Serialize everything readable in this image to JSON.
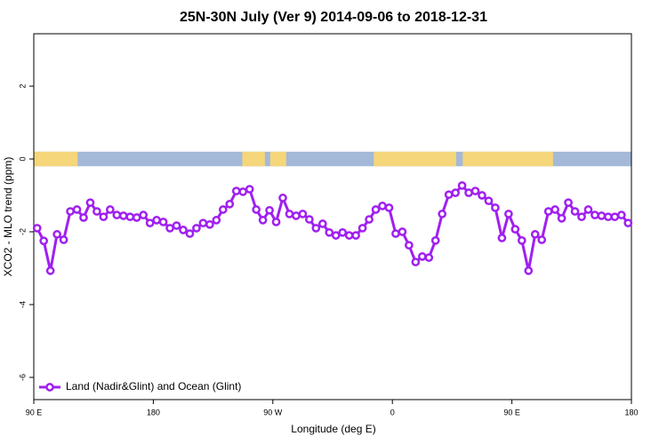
{
  "chart_data": {
    "type": "line",
    "title": "25N-30N July (Ver 9)   2014-09-06 to 2018-12-31",
    "x_label": "Longitude (deg E)",
    "y_label": "XCO2 - MLO trend (ppm)",
    "xlim": [
      90,
      540
    ],
    "ylim": [
      -6.61,
      3.44
    ],
    "xticks": [
      {
        "value": 90,
        "label": "90 E"
      },
      {
        "value": 180,
        "label": "180"
      },
      {
        "value": 270,
        "label": "90 W"
      },
      {
        "value": 360,
        "label": "0"
      },
      {
        "value": 450,
        "label": "90 E"
      },
      {
        "value": 540,
        "label": "180"
      }
    ],
    "yticks": [
      -6,
      -4,
      -2,
      0,
      2
    ],
    "legend": "bottom-left",
    "land_ocean_band": {
      "ylim": [
        -0.2,
        0.2
      ],
      "ocean_color": "#a4b9d8",
      "land_color": "#f5d67a",
      "land_spans": [
        [
          90,
          123
        ],
        [
          247,
          264
        ],
        [
          268,
          280
        ],
        [
          346,
          408
        ],
        [
          413,
          481
        ]
      ]
    },
    "x": [
      92.5,
      97.5,
      102.5,
      107.5,
      112.5,
      117.5,
      122.5,
      127.5,
      132.5,
      137.5,
      142.5,
      147.5,
      152.5,
      157.5,
      162.5,
      167.5,
      172.5,
      177.5,
      182.5,
      187.5,
      192.5,
      197.5,
      202.5,
      207.5,
      212.5,
      217.5,
      222.5,
      227.5,
      232.5,
      237.5,
      242.5,
      247.5,
      252.5,
      257.5,
      262.5,
      267.5,
      272.5,
      277.5,
      282.5,
      287.5,
      292.5,
      297.5,
      302.5,
      307.5,
      312.5,
      317.5,
      322.5,
      327.5,
      332.5,
      337.5,
      342.5,
      347.5,
      352.5,
      357.5,
      362.5,
      367.5,
      372.5,
      377.5,
      382.5,
      387.5,
      392.5,
      397.5,
      402.5,
      407.5,
      412.5,
      417.5,
      422.5,
      427.5,
      432.5,
      437.5,
      442.5,
      447.5,
      452.5,
      457.5,
      462.5,
      467.5,
      472.5,
      477.5,
      482.5,
      487.5,
      492.5,
      497.5,
      502.5,
      507.5,
      512.5,
      517.5,
      522.5,
      527.5,
      532.5,
      537.5
    ],
    "series": [
      {
        "name": "Land (Nadir&Glint) and Ocean (Glint)",
        "color": "#a020f0",
        "values": [
          -1.9,
          -2.25,
          -3.07,
          -2.07,
          -2.22,
          -1.44,
          -1.39,
          -1.61,
          -1.2,
          -1.44,
          -1.59,
          -1.39,
          -1.54,
          -1.56,
          -1.59,
          -1.61,
          -1.54,
          -1.76,
          -1.68,
          -1.73,
          -1.9,
          -1.83,
          -1.95,
          -2.05,
          -1.9,
          -1.76,
          -1.8,
          -1.68,
          -1.39,
          -1.24,
          -0.88,
          -0.9,
          -0.83,
          -1.39,
          -1.68,
          -1.41,
          -1.73,
          -1.07,
          -1.51,
          -1.56,
          -1.51,
          -1.66,
          -1.9,
          -1.78,
          -2.02,
          -2.1,
          -2.02,
          -2.1,
          -2.1,
          -1.9,
          -1.66,
          -1.39,
          -1.29,
          -1.34,
          -2.05,
          -2.0,
          -2.37,
          -2.83,
          -2.68,
          -2.71,
          -2.24,
          -1.51,
          -0.98,
          -0.93,
          -0.73,
          -0.93,
          -0.88,
          -1.0,
          -1.15,
          -1.34,
          -2.17,
          -1.51,
          -1.93,
          -2.24,
          -3.07,
          -2.07,
          -2.22,
          -1.44,
          -1.39,
          -1.63,
          -1.2,
          -1.44,
          -1.59,
          -1.39,
          -1.54,
          -1.56,
          -1.59,
          -1.59,
          -1.54,
          -1.76
        ]
      }
    ]
  }
}
